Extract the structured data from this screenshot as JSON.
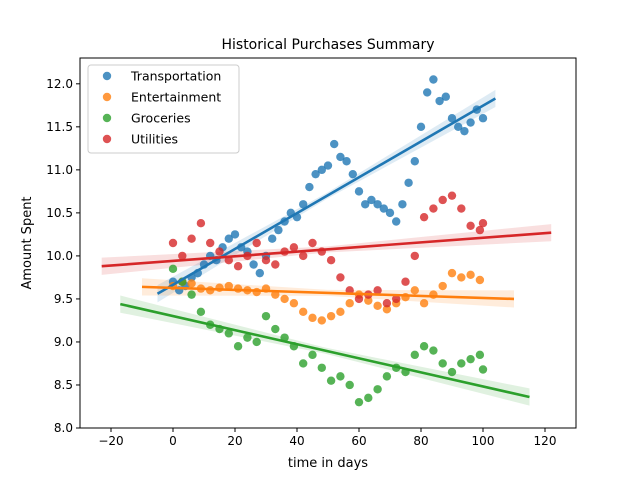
{
  "chart_data": {
    "type": "scatter",
    "title": "Historical Purchases Summary",
    "xlabel": "time in days",
    "ylabel": "Amount Spent",
    "xlim": [
      -30,
      130
    ],
    "ylim": [
      8.0,
      12.3
    ],
    "xticks": [
      -20,
      0,
      20,
      40,
      60,
      80,
      100,
      120
    ],
    "yticks": [
      8.0,
      8.5,
      9.0,
      9.5,
      10.0,
      10.5,
      11.0,
      11.5,
      12.0
    ],
    "grid": false,
    "legend_position": "top-left",
    "series": [
      {
        "name": "Transportation",
        "color": "#1f77b4",
        "points": [
          [
            0,
            9.7
          ],
          [
            2,
            9.6
          ],
          [
            4,
            9.65
          ],
          [
            6,
            9.75
          ],
          [
            8,
            9.8
          ],
          [
            10,
            9.9
          ],
          [
            12,
            10.0
          ],
          [
            14,
            9.95
          ],
          [
            16,
            10.1
          ],
          [
            18,
            10.2
          ],
          [
            20,
            10.25
          ],
          [
            22,
            10.1
          ],
          [
            24,
            10.05
          ],
          [
            26,
            9.9
          ],
          [
            28,
            9.8
          ],
          [
            30,
            10.0
          ],
          [
            32,
            10.2
          ],
          [
            34,
            10.3
          ],
          [
            36,
            10.4
          ],
          [
            38,
            10.5
          ],
          [
            40,
            10.45
          ],
          [
            42,
            10.6
          ],
          [
            44,
            10.8
          ],
          [
            46,
            10.95
          ],
          [
            48,
            11.0
          ],
          [
            50,
            11.05
          ],
          [
            52,
            11.3
          ],
          [
            54,
            11.15
          ],
          [
            56,
            11.1
          ],
          [
            58,
            10.95
          ],
          [
            60,
            10.75
          ],
          [
            62,
            10.6
          ],
          [
            64,
            10.65
          ],
          [
            66,
            10.6
          ],
          [
            68,
            10.55
          ],
          [
            70,
            10.5
          ],
          [
            72,
            10.4
          ],
          [
            74,
            10.6
          ],
          [
            76,
            10.85
          ],
          [
            78,
            11.1
          ],
          [
            80,
            11.5
          ],
          [
            82,
            11.9
          ],
          [
            84,
            12.05
          ],
          [
            86,
            11.8
          ],
          [
            88,
            11.85
          ],
          [
            90,
            11.6
          ],
          [
            92,
            11.5
          ],
          [
            94,
            11.45
          ],
          [
            96,
            11.55
          ],
          [
            98,
            11.7
          ],
          [
            100,
            11.6
          ]
        ],
        "regression": {
          "x": [
            -5,
            104
          ],
          "y": [
            9.56,
            11.83
          ]
        }
      },
      {
        "name": "Entertainment",
        "color": "#ff7f0e",
        "points": [
          [
            0,
            9.65
          ],
          [
            3,
            9.7
          ],
          [
            6,
            9.68
          ],
          [
            9,
            9.62
          ],
          [
            12,
            9.6
          ],
          [
            15,
            9.63
          ],
          [
            18,
            9.65
          ],
          [
            21,
            9.62
          ],
          [
            24,
            9.6
          ],
          [
            27,
            9.58
          ],
          [
            30,
            9.62
          ],
          [
            33,
            9.55
          ],
          [
            36,
            9.5
          ],
          [
            39,
            9.45
          ],
          [
            42,
            9.35
          ],
          [
            45,
            9.28
          ],
          [
            48,
            9.25
          ],
          [
            51,
            9.3
          ],
          [
            54,
            9.35
          ],
          [
            57,
            9.45
          ],
          [
            60,
            9.55
          ],
          [
            63,
            9.48
          ],
          [
            66,
            9.42
          ],
          [
            69,
            9.38
          ],
          [
            72,
            9.45
          ],
          [
            75,
            9.52
          ],
          [
            78,
            9.6
          ],
          [
            81,
            9.45
          ],
          [
            84,
            9.55
          ],
          [
            87,
            9.65
          ],
          [
            90,
            9.8
          ],
          [
            93,
            9.75
          ],
          [
            96,
            9.78
          ],
          [
            99,
            9.72
          ]
        ],
        "regression": {
          "x": [
            -10,
            110
          ],
          "y": [
            9.64,
            9.5
          ]
        }
      },
      {
        "name": "Groceries",
        "color": "#2ca02c",
        "points": [
          [
            0,
            9.85
          ],
          [
            3,
            9.7
          ],
          [
            6,
            9.55
          ],
          [
            9,
            9.35
          ],
          [
            12,
            9.2
          ],
          [
            15,
            9.15
          ],
          [
            18,
            9.1
          ],
          [
            21,
            8.95
          ],
          [
            24,
            9.05
          ],
          [
            27,
            9.0
          ],
          [
            30,
            9.3
          ],
          [
            33,
            9.15
          ],
          [
            36,
            9.05
          ],
          [
            39,
            8.95
          ],
          [
            42,
            8.75
          ],
          [
            45,
            8.85
          ],
          [
            48,
            8.7
          ],
          [
            51,
            8.55
          ],
          [
            54,
            8.6
          ],
          [
            57,
            8.5
          ],
          [
            60,
            8.3
          ],
          [
            63,
            8.35
          ],
          [
            66,
            8.45
          ],
          [
            69,
            8.6
          ],
          [
            72,
            8.7
          ],
          [
            75,
            8.65
          ],
          [
            78,
            8.85
          ],
          [
            81,
            8.95
          ],
          [
            84,
            8.9
          ],
          [
            87,
            8.75
          ],
          [
            90,
            8.65
          ],
          [
            93,
            8.75
          ],
          [
            96,
            8.8
          ],
          [
            99,
            8.85
          ],
          [
            100,
            8.68
          ]
        ],
        "regression": {
          "x": [
            -17,
            115
          ],
          "y": [
            9.44,
            8.36
          ]
        }
      },
      {
        "name": "Utilities",
        "color": "#d62728",
        "points": [
          [
            0,
            10.15
          ],
          [
            3,
            10.0
          ],
          [
            6,
            10.2
          ],
          [
            9,
            10.38
          ],
          [
            12,
            10.15
          ],
          [
            15,
            10.05
          ],
          [
            18,
            9.95
          ],
          [
            21,
            9.88
          ],
          [
            24,
            10.0
          ],
          [
            27,
            10.15
          ],
          [
            30,
            9.95
          ],
          [
            33,
            9.9
          ],
          [
            36,
            10.05
          ],
          [
            39,
            10.1
          ],
          [
            42,
            10.0
          ],
          [
            45,
            10.15
          ],
          [
            48,
            10.05
          ],
          [
            51,
            9.95
          ],
          [
            54,
            9.75
          ],
          [
            57,
            9.6
          ],
          [
            60,
            9.5
          ],
          [
            63,
            9.55
          ],
          [
            66,
            9.6
          ],
          [
            69,
            9.45
          ],
          [
            72,
            9.5
          ],
          [
            75,
            9.7
          ],
          [
            78,
            10.0
          ],
          [
            81,
            10.45
          ],
          [
            84,
            10.55
          ],
          [
            87,
            10.65
          ],
          [
            90,
            10.7
          ],
          [
            93,
            10.55
          ],
          [
            96,
            10.35
          ],
          [
            99,
            10.3
          ],
          [
            100,
            10.38
          ]
        ],
        "regression": {
          "x": [
            -23,
            122
          ],
          "y": [
            9.88,
            10.27
          ]
        }
      }
    ]
  }
}
